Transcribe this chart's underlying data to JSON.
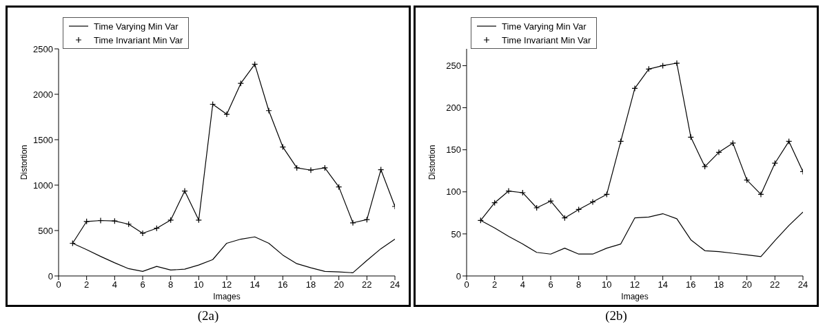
{
  "chart_data": [
    {
      "type": "line",
      "xlabel": "Images",
      "ylabel": "Distortion",
      "annotations": [
        "(2a)"
      ],
      "xlim": [
        0,
        24
      ],
      "xticks": [
        0,
        2,
        4,
        6,
        8,
        10,
        12,
        14,
        16,
        18,
        20,
        22,
        24
      ],
      "ylim": [
        0,
        2500
      ],
      "yticks": [
        0,
        500,
        1000,
        1500,
        2000,
        2500
      ],
      "grid": false,
      "legend": "top left",
      "x": [
        1,
        2,
        3,
        4,
        5,
        6,
        7,
        8,
        9,
        10,
        11,
        12,
        13,
        14,
        15,
        16,
        17,
        18,
        19,
        20,
        21,
        22,
        23,
        24
      ],
      "series": [
        {
          "name": "Time Varying Min Var",
          "color": "#000000",
          "marker": "none",
          "values": [
            360,
            290,
            215,
            145,
            80,
            50,
            105,
            65,
            75,
            120,
            180,
            360,
            405,
            430,
            360,
            230,
            135,
            90,
            50,
            45,
            35,
            170,
            300,
            405
          ]
        },
        {
          "name": "Time Invariant Min Var",
          "color": "#000000",
          "marker": "cross",
          "values": [
            360,
            600,
            610,
            605,
            570,
            470,
            525,
            615,
            935,
            615,
            1890,
            1780,
            2120,
            2330,
            1820,
            1420,
            1190,
            1165,
            1190,
            980,
            585,
            620,
            1170,
            765
          ]
        }
      ]
    },
    {
      "type": "line",
      "xlabel": "Images",
      "ylabel": "Distortion",
      "annotations": [
        "(2b)"
      ],
      "xlim": [
        0,
        24
      ],
      "xticks": [
        0,
        2,
        4,
        6,
        8,
        10,
        12,
        14,
        16,
        18,
        20,
        22,
        24
      ],
      "ylim": [
        0,
        270
      ],
      "yticks": [
        0,
        50,
        100,
        150,
        200,
        250
      ],
      "grid": false,
      "legend": "top left",
      "x": [
        1,
        2,
        3,
        4,
        5,
        6,
        7,
        8,
        9,
        10,
        11,
        12,
        13,
        14,
        15,
        16,
        17,
        18,
        19,
        20,
        21,
        22,
        23,
        24
      ],
      "series": [
        {
          "name": "Time Varying Min Var",
          "color": "#000000",
          "marker": "none",
          "values": [
            66,
            57,
            47,
            38,
            28,
            26,
            33,
            26,
            26,
            33,
            38,
            69,
            70,
            74,
            68,
            43,
            30,
            29,
            27,
            25,
            23,
            42,
            60,
            76
          ]
        },
        {
          "name": "Time Invariant Min Var",
          "color": "#000000",
          "marker": "cross",
          "values": [
            66,
            87,
            101,
            99,
            81,
            89,
            69,
            79,
            88,
            97,
            160,
            223,
            246,
            250,
            253,
            165,
            130,
            147,
            158,
            114,
            97,
            134,
            160,
            124
          ]
        }
      ]
    }
  ]
}
